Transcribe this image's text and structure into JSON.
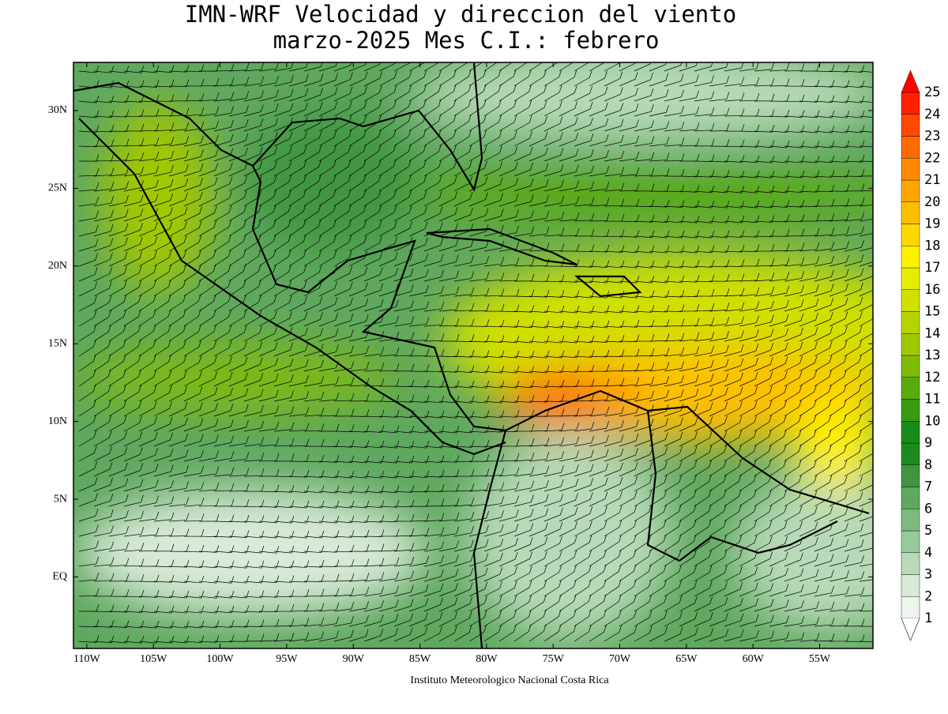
{
  "title": {
    "line1": "IMN-WRF Velocidad y direccion del viento",
    "line2": "marzo-2025 Mes C.I.: febrero"
  },
  "map": {
    "lat_ticks": [
      {
        "value": 30,
        "label": "30N"
      },
      {
        "value": 25,
        "label": "25N"
      },
      {
        "value": 20,
        "label": "20N"
      },
      {
        "value": 15,
        "label": "15N"
      },
      {
        "value": 10,
        "label": "10N"
      },
      {
        "value": 5,
        "label": "5N"
      },
      {
        "value": 0,
        "label": "EQ"
      }
    ],
    "lon_ticks": [
      {
        "value": -110,
        "label": "110W"
      },
      {
        "value": -105,
        "label": "105W"
      },
      {
        "value": -100,
        "label": "100W"
      },
      {
        "value": -95,
        "label": "95W"
      },
      {
        "value": -90,
        "label": "90W"
      },
      {
        "value": -85,
        "label": "85W"
      },
      {
        "value": -80,
        "label": "80W"
      },
      {
        "value": -75,
        "label": "75W"
      },
      {
        "value": -70,
        "label": "70W"
      },
      {
        "value": -65,
        "label": "65W"
      },
      {
        "value": -60,
        "label": "60W"
      },
      {
        "value": -55,
        "label": "55W"
      }
    ],
    "lonlim": [
      -111,
      -51
    ],
    "latlim": [
      -4.6,
      33.1
    ]
  },
  "colorbar": {
    "levels": [
      1,
      2,
      3,
      4,
      5,
      6,
      7,
      8,
      9,
      10,
      11,
      12,
      13,
      14,
      15,
      16,
      17,
      18,
      19,
      20,
      21,
      22,
      23,
      24,
      25
    ],
    "colors": [
      "#eef5ee",
      "#d8ead8",
      "#b8dab8",
      "#98c998",
      "#7dba7d",
      "#5fa85f",
      "#3f963f",
      "#1e8a1e",
      "#188c18",
      "#3a9a10",
      "#5aaa10",
      "#80bb08",
      "#a0c800",
      "#b8d400",
      "#d0e000",
      "#e8ec00",
      "#fff000",
      "#ffd800",
      "#ffbf00",
      "#ffa500",
      "#ff8a00",
      "#ff6a00",
      "#ff4800",
      "#ff2000"
    ],
    "over_color": "#ff0000"
  },
  "footer": "Instituto Meteorologico Nacional Costa Rica"
}
